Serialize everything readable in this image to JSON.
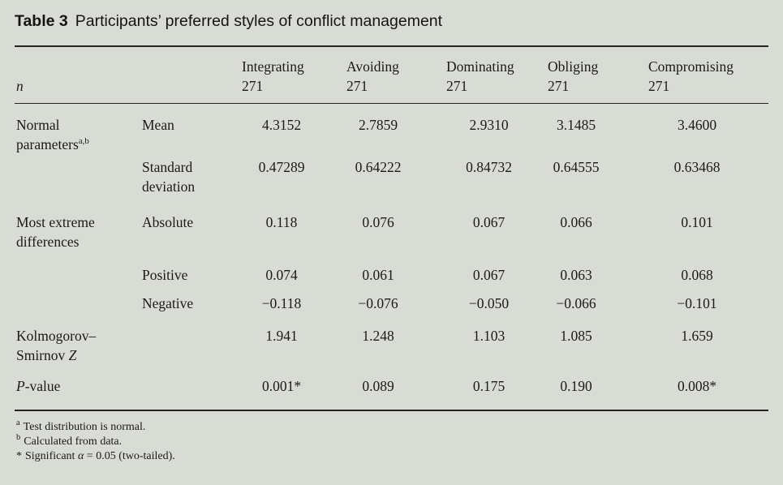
{
  "title": {
    "label": "Table 3",
    "text": "Participants’ preferred styles of conflict management"
  },
  "colors": {
    "background": "#d9dcd5",
    "text": "#1a1a1a",
    "rule": "#242424"
  },
  "table": {
    "n_label": "n",
    "columns": [
      {
        "name": "Integrating",
        "n": "271"
      },
      {
        "name": "Avoiding",
        "n": "271"
      },
      {
        "name": "Dominating",
        "n": "271"
      },
      {
        "name": "Obliging",
        "n": "271"
      },
      {
        "name": "Compromising",
        "n": "271"
      }
    ],
    "rows": [
      {
        "label_text": "Normal parameters",
        "label_sup": "a,b",
        "stat": "Mean",
        "values": [
          "4.3152",
          "2.7859",
          "2.9310",
          "3.1485",
          "3.4600"
        ]
      },
      {
        "stat": "Standard deviation",
        "values": [
          "0.47289",
          "0.64222",
          "0.84732",
          "0.64555",
          "0.63468"
        ]
      },
      {
        "label_text": "Most extreme differences",
        "stat": "Absolute",
        "values": [
          "0.118",
          "0.076",
          "0.067",
          "0.066",
          "0.101"
        ]
      },
      {
        "stat": "Positive",
        "values": [
          "0.074",
          "0.061",
          "0.067",
          "0.063",
          "0.068"
        ]
      },
      {
        "stat": "Negative",
        "values": [
          "−0.118",
          "−0.076",
          "−0.050",
          "−0.066",
          "−0.101"
        ]
      },
      {
        "label_text": "Kolmogorov–Smirnov ",
        "label_italic": "Z",
        "values": [
          "1.941",
          "1.248",
          "1.103",
          "1.085",
          "1.659"
        ]
      },
      {
        "label_pre_italic": "P",
        "label_text": "-value",
        "values": [
          "0.001*",
          "0.089",
          "0.175",
          "0.190",
          "0.008*"
        ]
      }
    ],
    "footnotes": [
      {
        "sup": "a",
        "text": "Test distribution is normal."
      },
      {
        "sup": "b",
        "text": "Calculated from data."
      },
      {
        "star": "*",
        "text": "Significant ",
        "italic": "α",
        "rest": " = 0.05 (two-tailed)."
      }
    ]
  }
}
